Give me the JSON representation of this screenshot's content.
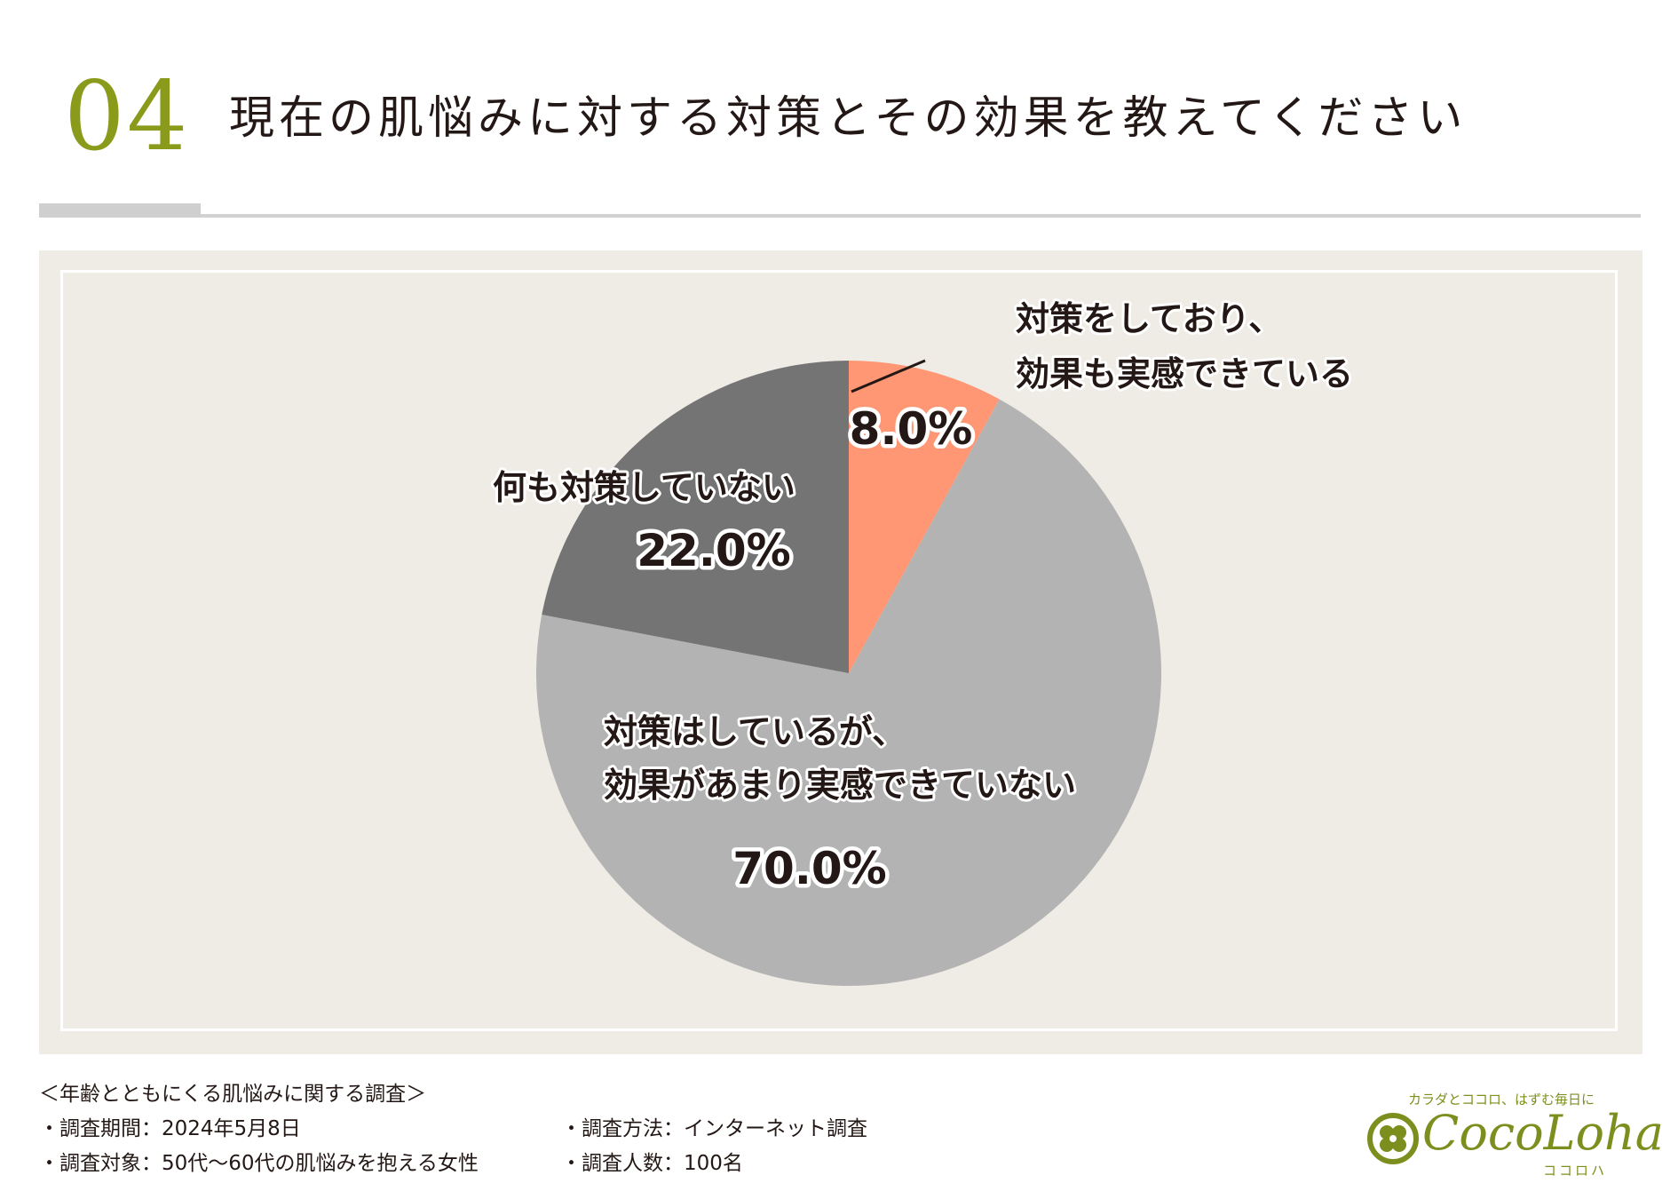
{
  "header": {
    "number": "04",
    "title": "現在の肌悩みに対する対策とその効果を教えてください"
  },
  "chart_data": {
    "type": "pie",
    "title": "現在の肌悩みに対する対策とその効果を教えてください",
    "slices": [
      {
        "label_lines": [
          "対策をしており、",
          "効果も実感できている"
        ],
        "value": 8.0,
        "display": "8.0%",
        "color": "#ff9775"
      },
      {
        "label_lines": [
          "対策はしているが、",
          "効果があまり実感できていない"
        ],
        "value": 70.0,
        "display": "70.0%",
        "color": "#b3b3b3"
      },
      {
        "label_lines": [
          "何も対策していない"
        ],
        "value": 22.0,
        "display": "22.0%",
        "color": "#747474"
      }
    ],
    "start": "12 o'clock",
    "direction": "clockwise",
    "legend": "none (direct labels)"
  },
  "footer": {
    "survey_title": "＜年齢とともにくる肌悩みに関する調査＞",
    "period": "・調査期間：2024年5月8日",
    "method": "・調査方法：インターネット調査",
    "target": "・調査対象：50代〜60代の肌悩みを抱える女性",
    "count": "・調査人数：100名"
  },
  "logo": {
    "tagline": "カラダとココロ、はずむ毎日に",
    "name": "CocoLoha",
    "sub": "ココロハ",
    "brand_color": "#7c8f1e",
    "icon": "clover-icon"
  },
  "colors": {
    "accent": "#8a9a1b",
    "panel_background": "#efebe5"
  }
}
